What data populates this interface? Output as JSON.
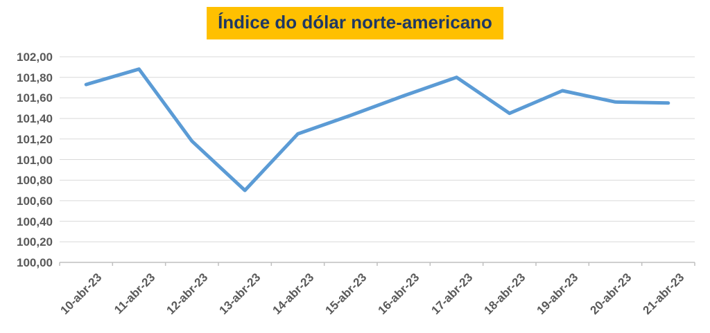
{
  "title": {
    "text": "Índice do dólar norte-americano",
    "bg_color": "#FFC000",
    "text_color": "#1F3864"
  },
  "chart_data": {
    "type": "line",
    "title": "Índice do dólar norte-americano",
    "categories": [
      "10-abr-23",
      "11-abr-23",
      "12-abr-23",
      "13-abr-23",
      "14-abr-23",
      "15-abr-23",
      "16-abr-23",
      "17-abr-23",
      "18-abr-23",
      "19-abr-23",
      "20-abr-23",
      "21-abr-23"
    ],
    "values": [
      101.73,
      101.88,
      101.18,
      100.7,
      101.25,
      101.43,
      101.62,
      101.8,
      101.45,
      101.67,
      101.56,
      101.55
    ],
    "xlabel": "",
    "ylabel": "",
    "ylim": [
      100.0,
      102.0
    ],
    "ytick_step": 0.2,
    "ytick_labels_top_to_bottom": [
      "102,00",
      "101,80",
      "101,60",
      "101,40",
      "101,20",
      "101,00",
      "100,80",
      "100,60",
      "100,40",
      "100,20",
      "100,00"
    ],
    "grid": "horizontal",
    "legend": "none",
    "x_label_rotation_deg": 45,
    "colors": {
      "line": "#5B9BD5",
      "gridline": "#D9D9D9",
      "axis": "#BFBFBF",
      "tick_labels": "#595959"
    }
  }
}
